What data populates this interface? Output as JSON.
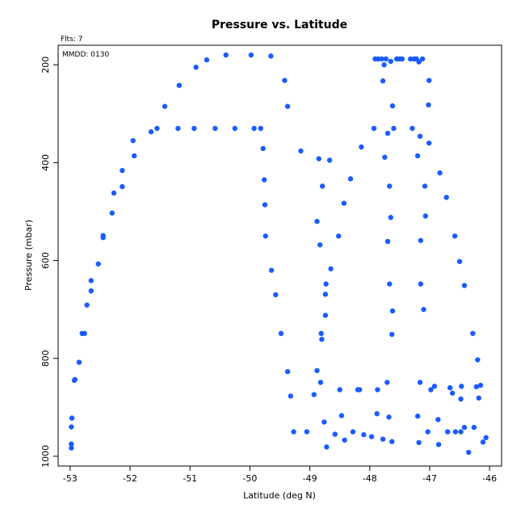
{
  "chart_data": {
    "type": "scatter",
    "title": "Pressure vs. Latitude",
    "annotations": [
      "Flts: 7",
      "MMDD: 0130"
    ],
    "xlabel": "Latitude (deg N)",
    "ylabel": "Pressure (mbar)",
    "xlim": [
      -53.2,
      -45.8
    ],
    "ylim": [
      1020,
      160
    ],
    "y_inverted": true,
    "x_ticks": [
      -53,
      -52,
      -51,
      -50,
      -49,
      -48,
      -47,
      -46
    ],
    "y_ticks": [
      200,
      400,
      600,
      800,
      1000
    ],
    "grid": false,
    "marker_color": "#1a5cff",
    "points": [
      [
        -52.98,
        975
      ],
      [
        -52.98,
        983
      ],
      [
        -52.98,
        940
      ],
      [
        -52.97,
        922
      ],
      [
        -52.93,
        845
      ],
      [
        -52.92,
        843
      ],
      [
        -52.85,
        808
      ],
      [
        -52.8,
        749
      ],
      [
        -52.76,
        749
      ],
      [
        -52.72,
        691
      ],
      [
        -52.65,
        662
      ],
      [
        -52.65,
        641
      ],
      [
        -52.53,
        607
      ],
      [
        -52.45,
        553
      ],
      [
        -52.45,
        549
      ],
      [
        -52.3,
        503
      ],
      [
        -52.27,
        462
      ],
      [
        -52.13,
        449
      ],
      [
        -52.13,
        416
      ],
      [
        -51.93,
        386
      ],
      [
        -51.95,
        355
      ],
      [
        -51.65,
        337
      ],
      [
        -51.55,
        330
      ],
      [
        -51.42,
        285
      ],
      [
        -51.2,
        330
      ],
      [
        -51.18,
        242
      ],
      [
        -50.93,
        330
      ],
      [
        -50.9,
        205
      ],
      [
        -50.72,
        190
      ],
      [
        -50.58,
        330
      ],
      [
        -50.4,
        180
      ],
      [
        -50.25,
        330
      ],
      [
        -49.98,
        180
      ],
      [
        -49.93,
        330
      ],
      [
        -49.82,
        330
      ],
      [
        -49.78,
        371
      ],
      [
        -49.76,
        435
      ],
      [
        -49.75,
        486
      ],
      [
        -49.74,
        550
      ],
      [
        -49.65,
        182
      ],
      [
        -49.64,
        620
      ],
      [
        -49.57,
        670
      ],
      [
        -49.48,
        749
      ],
      [
        -49.42,
        232
      ],
      [
        -49.37,
        285
      ],
      [
        -49.37,
        827
      ],
      [
        -49.32,
        877
      ],
      [
        -49.27,
        950
      ],
      [
        -49.15,
        376
      ],
      [
        -49.05,
        950
      ],
      [
        -48.93,
        874
      ],
      [
        -48.88,
        520
      ],
      [
        -48.88,
        825
      ],
      [
        -48.85,
        392
      ],
      [
        -48.83,
        568
      ],
      [
        -48.82,
        849
      ],
      [
        -48.81,
        749
      ],
      [
        -48.8,
        761
      ],
      [
        -48.79,
        448
      ],
      [
        -48.76,
        930
      ],
      [
        -48.74,
        712
      ],
      [
        -48.74,
        669
      ],
      [
        -48.73,
        648
      ],
      [
        -48.72,
        981
      ],
      [
        -48.67,
        395
      ],
      [
        -48.65,
        617
      ],
      [
        -48.58,
        955
      ],
      [
        -48.52,
        550
      ],
      [
        -48.5,
        864
      ],
      [
        -48.47,
        917
      ],
      [
        -48.43,
        483
      ],
      [
        -48.42,
        967
      ],
      [
        -48.32,
        433
      ],
      [
        -48.28,
        950
      ],
      [
        -48.2,
        864
      ],
      [
        -48.17,
        864
      ],
      [
        -48.14,
        368
      ],
      [
        -48.1,
        956
      ],
      [
        -47.97,
        960
      ],
      [
        -47.93,
        330
      ],
      [
        -47.91,
        188
      ],
      [
        -47.88,
        913
      ],
      [
        -47.87,
        864
      ],
      [
        -47.86,
        188
      ],
      [
        -47.8,
        188
      ],
      [
        -47.78,
        233
      ],
      [
        -47.78,
        965
      ],
      [
        -47.76,
        200
      ],
      [
        -47.75,
        389
      ],
      [
        -47.73,
        188
      ],
      [
        -47.71,
        849
      ],
      [
        -47.7,
        340
      ],
      [
        -47.7,
        561
      ],
      [
        -47.68,
        920
      ],
      [
        -47.67,
        448
      ],
      [
        -47.67,
        648
      ],
      [
        -47.65,
        512
      ],
      [
        -47.65,
        193
      ],
      [
        -47.63,
        970
      ],
      [
        -47.63,
        751
      ],
      [
        -47.62,
        284
      ],
      [
        -47.62,
        703
      ],
      [
        -47.6,
        330
      ],
      [
        -47.55,
        188
      ],
      [
        -47.5,
        188
      ],
      [
        -47.46,
        188
      ],
      [
        -47.32,
        188
      ],
      [
        -47.29,
        330
      ],
      [
        -47.26,
        188
      ],
      [
        -47.22,
        188
      ],
      [
        -47.2,
        386
      ],
      [
        -47.2,
        918
      ],
      [
        -47.18,
        972
      ],
      [
        -47.18,
        194
      ],
      [
        -47.16,
        346
      ],
      [
        -47.16,
        849
      ],
      [
        -47.15,
        559
      ],
      [
        -47.15,
        648
      ],
      [
        -47.12,
        188
      ],
      [
        -47.1,
        700
      ],
      [
        -47.08,
        448
      ],
      [
        -47.07,
        509
      ],
      [
        -47.03,
        950
      ],
      [
        -47.02,
        282
      ],
      [
        -47.01,
        232
      ],
      [
        -47.01,
        360
      ],
      [
        -46.98,
        864
      ],
      [
        -46.92,
        857
      ],
      [
        -46.86,
        925
      ],
      [
        -46.85,
        976
      ],
      [
        -46.83,
        421
      ],
      [
        -46.72,
        471
      ],
      [
        -46.7,
        950
      ],
      [
        -46.66,
        860
      ],
      [
        -46.62,
        871
      ],
      [
        -46.58,
        550
      ],
      [
        -46.57,
        950
      ],
      [
        -46.5,
        602
      ],
      [
        -46.48,
        950
      ],
      [
        -46.48,
        883
      ],
      [
        -46.47,
        857
      ],
      [
        -46.42,
        651
      ],
      [
        -46.42,
        941
      ],
      [
        -46.35,
        992
      ],
      [
        -46.28,
        749
      ],
      [
        -46.26,
        941
      ],
      [
        -46.22,
        858
      ],
      [
        -46.2,
        803
      ],
      [
        -46.18,
        881
      ],
      [
        -46.15,
        855
      ],
      [
        -46.11,
        971
      ],
      [
        -46.06,
        962
      ]
    ]
  }
}
